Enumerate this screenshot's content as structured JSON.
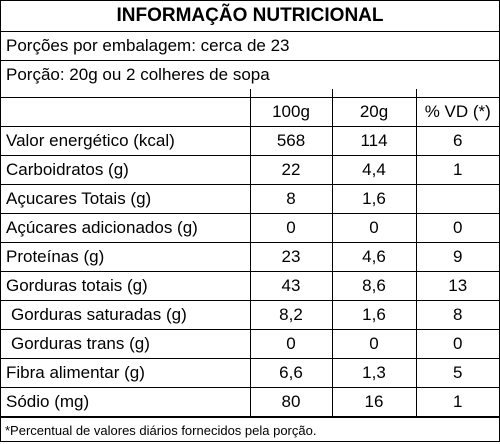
{
  "title": "INFORMAÇÃO NUTRICIONAL",
  "servings_per_package": "Porções por embalagem: cerca de 23",
  "serving_size": "Porção: 20g ou 2 colheres de sopa",
  "columns": [
    "100g",
    "20g",
    "% VD (*)"
  ],
  "rows": [
    {
      "name": "Valor energético (kcal)",
      "v100": "568",
      "v20": "114",
      "vd": "6"
    },
    {
      "name": "Carboidratos (g)",
      "v100": "22",
      "v20": "4,4",
      "vd": "1"
    },
    {
      "name": "Açucares Totais (g)",
      "v100": "8",
      "v20": "1,6",
      "vd": ""
    },
    {
      "name": "Açúcares adicionados (g)",
      "v100": "0",
      "v20": "0",
      "vd": "0"
    },
    {
      "name": "Proteínas (g)",
      "v100": "23",
      "v20": "4,6",
      "vd": "9"
    },
    {
      "name": "Gorduras totais (g)",
      "v100": "43",
      "v20": "8,6",
      "vd": "13"
    },
    {
      "name": "Gorduras saturadas (g)",
      "v100": "8,2",
      "v20": "1,6",
      "vd": "8"
    },
    {
      "name": "Gorduras trans (g)",
      "v100": "0",
      "v20": "0",
      "vd": "0"
    },
    {
      "name": "Fibra alimentar (g)",
      "v100": "6,6",
      "v20": "1,3",
      "vd": "5"
    },
    {
      "name": "Sódio (mg)",
      "v100": "80",
      "v20": "16",
      "vd": "1"
    }
  ],
  "footnote": "*Percentual de valores diários fornecidos pela porção."
}
